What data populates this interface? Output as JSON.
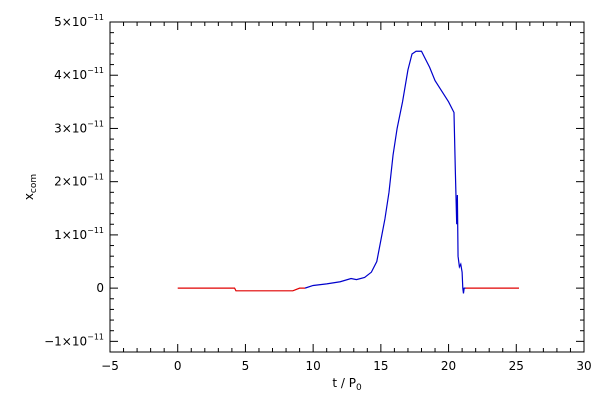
{
  "chart_data": {
    "type": "line",
    "xlabel": "t / P",
    "xlabel_sub": "0",
    "ylabel": "x",
    "ylabel_sub": "com",
    "xlim": [
      -5,
      30
    ],
    "ylim": [
      -1.2e-11,
      5e-11
    ],
    "x_ticks": [
      -5,
      0,
      5,
      10,
      15,
      20,
      25,
      30
    ],
    "y_ticks": [
      {
        "value": -1e-11,
        "label": "−1×10"
      },
      {
        "value": 0,
        "label": "0"
      },
      {
        "value": 1e-11,
        "label": "1×10"
      },
      {
        "value": 2e-11,
        "label": "2×10"
      },
      {
        "value": 3e-11,
        "label": "3×10"
      },
      {
        "value": 4e-11,
        "label": "4×10"
      },
      {
        "value": 5e-11,
        "label": "5×10"
      }
    ],
    "y_tick_exponent": "−11",
    "series": [
      {
        "color": "#e00000",
        "x": [
          0,
          4.2,
          4.3,
          8.5,
          9.0,
          9.4
        ],
        "y": [
          0,
          0,
          -5e-13,
          -5e-13,
          0,
          0
        ]
      },
      {
        "color": "#0000cc",
        "x": [
          9.4,
          10,
          11,
          12,
          12.8,
          13.2,
          13.8,
          14.3,
          14.7,
          15.0,
          15.3,
          15.6,
          15.9,
          16.2,
          16.6,
          17.0,
          17.3,
          17.6,
          18.0,
          18.2,
          18.6,
          19.0,
          19.5,
          20.0,
          20.4,
          20.5,
          20.55,
          20.6,
          20.65,
          20.7,
          20.8,
          20.9,
          21.0,
          21.05,
          21.1,
          21.15,
          21.25
        ],
        "y": [
          0,
          5e-13,
          8e-13,
          1.2e-12,
          1.8e-12,
          1.6e-12,
          2e-12,
          3e-12,
          5e-12,
          9e-12,
          1.3e-11,
          1.8e-11,
          2.5e-11,
          3e-11,
          3.5e-11,
          4.1e-11,
          4.4e-11,
          4.45e-11,
          4.45e-11,
          4.35e-11,
          4.15e-11,
          3.9e-11,
          3.7e-11,
          3.5e-11,
          3.3e-11,
          2.2e-11,
          1.7e-11,
          1.2e-11,
          1.75e-11,
          6e-12,
          4e-12,
          4.5e-12,
          3e-12,
          0.0,
          -1e-12,
          0.0,
          0.0
        ]
      },
      {
        "color": "#e00000",
        "x": [
          21.25,
          21.5,
          23,
          25.2
        ],
        "y": [
          0.0,
          0,
          0,
          0
        ]
      }
    ]
  }
}
